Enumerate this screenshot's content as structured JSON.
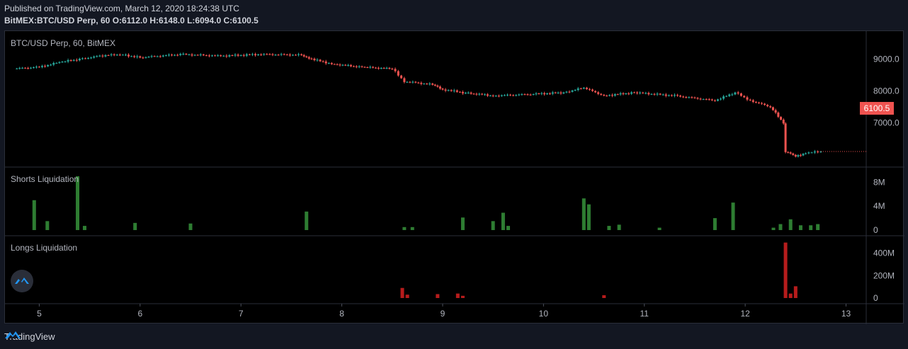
{
  "header": {
    "published": "Published on TradingView.com, March 12, 2020 18:24:38 UTC",
    "ohlc": "BitMEX:BTC/USD Perp, 60 O:6112.0 H:6148.0 L:6094.0 C:6100.5"
  },
  "panes": {
    "price_title": "BTC/USD Perp, 60, BitMEX",
    "shorts_title": "Shorts Liquidation",
    "longs_title": "Longs Liquidation"
  },
  "last_price": "6100.5",
  "footer": {
    "brand": "TradingView"
  },
  "colors": {
    "up": "#26a69a",
    "down": "#ef5350",
    "shorts": "#2e7d32",
    "longs": "#b71c1c",
    "grid": "#2a2e39",
    "background": "#000000"
  },
  "chart_data": [
    {
      "type": "candlestick",
      "title": "BTC/USD Perp, 60, BitMEX",
      "x_ticks": [
        "5",
        "6",
        "7",
        "8",
        "9",
        "10",
        "11",
        "12",
        "13"
      ],
      "y_ticks": [
        "9000.0",
        "8000.0",
        "7000.0"
      ],
      "ylim": [
        5700,
        9700
      ],
      "points": [
        {
          "x": 4.75,
          "p": 8700
        },
        {
          "x": 5.0,
          "p": 8750
        },
        {
          "x": 5.2,
          "p": 8900
        },
        {
          "x": 5.4,
          "p": 9000
        },
        {
          "x": 5.6,
          "p": 9100
        },
        {
          "x": 5.8,
          "p": 9150
        },
        {
          "x": 6.0,
          "p": 9050
        },
        {
          "x": 6.4,
          "p": 9150
        },
        {
          "x": 6.8,
          "p": 9100
        },
        {
          "x": 7.2,
          "p": 9150
        },
        {
          "x": 7.6,
          "p": 9130
        },
        {
          "x": 7.7,
          "p": 9000
        },
        {
          "x": 7.9,
          "p": 8850
        },
        {
          "x": 8.2,
          "p": 8750
        },
        {
          "x": 8.5,
          "p": 8700
        },
        {
          "x": 8.62,
          "p": 8300
        },
        {
          "x": 8.9,
          "p": 8200
        },
        {
          "x": 9.0,
          "p": 8050
        },
        {
          "x": 9.2,
          "p": 7950
        },
        {
          "x": 9.5,
          "p": 7850
        },
        {
          "x": 9.9,
          "p": 7900
        },
        {
          "x": 10.2,
          "p": 7950
        },
        {
          "x": 10.4,
          "p": 8100
        },
        {
          "x": 10.6,
          "p": 7850
        },
        {
          "x": 10.9,
          "p": 7950
        },
        {
          "x": 11.3,
          "p": 7850
        },
        {
          "x": 11.7,
          "p": 7700
        },
        {
          "x": 11.9,
          "p": 7950
        },
        {
          "x": 12.05,
          "p": 7700
        },
        {
          "x": 12.25,
          "p": 7500
        },
        {
          "x": 12.38,
          "p": 7000
        },
        {
          "x": 12.4,
          "p": 6100
        },
        {
          "x": 12.5,
          "p": 5950
        },
        {
          "x": 12.6,
          "p": 6050
        },
        {
          "x": 12.75,
          "p": 6100
        }
      ]
    },
    {
      "type": "bar",
      "title": "Shorts Liquidation",
      "y_ticks": [
        "8M",
        "4M",
        "0"
      ],
      "ylim": [
        0,
        9000000
      ],
      "x": [
        4.95,
        5.08,
        5.38,
        5.45,
        5.95,
        6.5,
        7.65,
        8.62,
        8.7,
        9.2,
        9.5,
        9.6,
        9.65,
        10.4,
        10.45,
        10.65,
        10.75,
        11.15,
        11.7,
        11.88,
        12.28,
        12.35,
        12.45,
        12.55,
        12.65,
        12.72
      ],
      "values": [
        5000000,
        1500000,
        9000000,
        700000,
        1200000,
        1100000,
        3100000,
        500000,
        500000,
        2100000,
        1500000,
        2900000,
        700000,
        5300000,
        4300000,
        700000,
        900000,
        400000,
        2000000,
        4600000,
        400000,
        1000000,
        1800000,
        800000,
        800000,
        1000000
      ]
    },
    {
      "type": "bar",
      "title": "Longs Liquidation",
      "y_ticks": [
        "400M",
        "200M",
        "0"
      ],
      "ylim": [
        0,
        480000000
      ],
      "x": [
        8.6,
        8.65,
        8.95,
        9.15,
        9.2,
        10.6,
        12.4,
        12.45,
        12.5
      ],
      "values": [
        90000000,
        30000000,
        35000000,
        40000000,
        20000000,
        25000000,
        495000000,
        40000000,
        105000000
      ]
    }
  ]
}
